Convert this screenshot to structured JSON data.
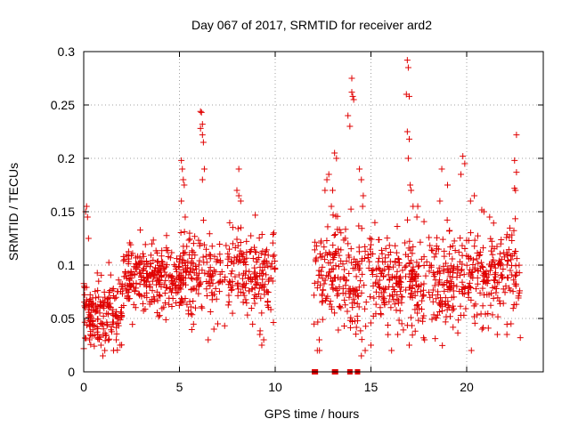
{
  "chart_data": {
    "type": "scatter",
    "title": "Day 067 of 2017, SRMTID for receiver ard2",
    "xlabel": "GPS time / hours",
    "ylabel": "SRMTID / TECUs",
    "xlim": [
      0,
      24
    ],
    "ylim": [
      0,
      0.3
    ],
    "xticks": [
      0,
      5,
      10,
      15,
      20
    ],
    "xtick_labels": [
      "0",
      "5",
      "10",
      "15",
      "20"
    ],
    "yticks": [
      0,
      0.05,
      0.1,
      0.15,
      0.2,
      0.25,
      0.3
    ],
    "ytick_labels": [
      "0",
      "0.05",
      "0.1",
      "0.15",
      "0.2",
      "0.25",
      "0.3"
    ],
    "grid": true,
    "series": [
      {
        "name": "SRMTID",
        "color": "#e00000",
        "marker": "plus",
        "clusters": [
          {
            "x_range": [
              0.0,
              2.0
            ],
            "y_center": 0.055,
            "y_spread": 0.022,
            "count": 170
          },
          {
            "x_range": [
              2.0,
              5.2
            ],
            "y_center": 0.088,
            "y_spread": 0.018,
            "count": 260
          },
          {
            "x_range": [
              5.0,
              10.0
            ],
            "y_center": 0.095,
            "y_spread": 0.025,
            "count": 320
          },
          {
            "x_range": [
              12.0,
              15.0
            ],
            "y_center": 0.09,
            "y_spread": 0.03,
            "count": 200
          },
          {
            "x_range": [
              15.0,
              19.0
            ],
            "y_center": 0.085,
            "y_spread": 0.03,
            "count": 280
          },
          {
            "x_range": [
              19.0,
              22.8
            ],
            "y_center": 0.09,
            "y_spread": 0.028,
            "count": 260
          }
        ],
        "points": [
          [
            0.1,
            0.15
          ],
          [
            0.15,
            0.155
          ],
          [
            0.2,
            0.145
          ],
          [
            0.25,
            0.125
          ],
          [
            0.3,
            0.03
          ],
          [
            0.35,
            0.035
          ],
          [
            1.0,
            0.015
          ],
          [
            1.1,
            0.02
          ],
          [
            0.9,
            0.025
          ],
          [
            1.7,
            0.03
          ],
          [
            1.9,
            0.025
          ],
          [
            5.1,
            0.198
          ],
          [
            5.15,
            0.19
          ],
          [
            5.2,
            0.18
          ],
          [
            5.25,
            0.175
          ],
          [
            5.1,
            0.16
          ],
          [
            5.3,
            0.145
          ],
          [
            6.1,
            0.244
          ],
          [
            6.15,
            0.243
          ],
          [
            6.2,
            0.232
          ],
          [
            6.1,
            0.228
          ],
          [
            6.2,
            0.222
          ],
          [
            6.25,
            0.215
          ],
          [
            6.3,
            0.19
          ],
          [
            6.2,
            0.18
          ],
          [
            6.5,
            0.03
          ],
          [
            6.8,
            0.04
          ],
          [
            7.0,
            0.045
          ],
          [
            8.1,
            0.19
          ],
          [
            8.0,
            0.17
          ],
          [
            8.1,
            0.165
          ],
          [
            8.2,
            0.16
          ],
          [
            9.3,
            0.025
          ],
          [
            9.4,
            0.03
          ],
          [
            9.2,
            0.035
          ],
          [
            12.2,
            0.02
          ],
          [
            12.3,
            0.03
          ],
          [
            12.6,
            0.17
          ],
          [
            12.7,
            0.18
          ],
          [
            12.8,
            0.185
          ],
          [
            13.1,
            0.205
          ],
          [
            13.2,
            0.2
          ],
          [
            13.0,
            0.17
          ],
          [
            13.8,
            0.24
          ],
          [
            14.0,
            0.275
          ],
          [
            14.0,
            0.262
          ],
          [
            14.05,
            0.258
          ],
          [
            14.1,
            0.255
          ],
          [
            13.9,
            0.23
          ],
          [
            14.4,
            0.19
          ],
          [
            14.5,
            0.18
          ],
          [
            14.6,
            0.165
          ],
          [
            14.5,
            0.015
          ],
          [
            14.7,
            0.02
          ],
          [
            15.0,
            0.025
          ],
          [
            16.9,
            0.292
          ],
          [
            16.95,
            0.285
          ],
          [
            16.85,
            0.26
          ],
          [
            17.0,
            0.258
          ],
          [
            16.9,
            0.225
          ],
          [
            17.0,
            0.218
          ],
          [
            16.95,
            0.2
          ],
          [
            17.05,
            0.175
          ],
          [
            17.1,
            0.17
          ],
          [
            17.2,
            0.155
          ],
          [
            17.4,
            0.145
          ],
          [
            16.4,
            0.035
          ],
          [
            17.0,
            0.025
          ],
          [
            17.8,
            0.03
          ],
          [
            18.7,
            0.19
          ],
          [
            19.0,
            0.175
          ],
          [
            18.6,
            0.16
          ],
          [
            19.8,
            0.202
          ],
          [
            19.9,
            0.195
          ],
          [
            19.7,
            0.185
          ],
          [
            20.2,
            0.16
          ],
          [
            20.4,
            0.165
          ],
          [
            20.9,
            0.15
          ],
          [
            21.2,
            0.145
          ],
          [
            20.8,
            0.04
          ],
          [
            21.6,
            0.035
          ],
          [
            22.6,
            0.222
          ],
          [
            22.5,
            0.198
          ],
          [
            22.6,
            0.187
          ],
          [
            22.5,
            0.172
          ],
          [
            22.55,
            0.17
          ],
          [
            22.1,
            0.035
          ],
          [
            22.8,
            0.032
          ]
        ],
        "zero_markers": [
          12.05,
          12.1,
          13.1,
          13.15,
          13.9,
          14.3
        ]
      }
    ]
  }
}
